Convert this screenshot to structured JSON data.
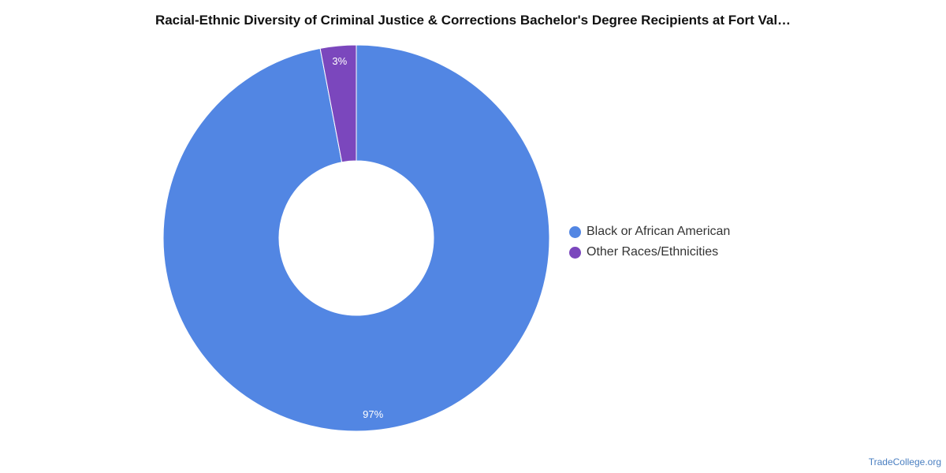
{
  "chart_data": {
    "type": "pie",
    "title": "Racial-Ethnic Diversity of Criminal Justice & Corrections Bachelor's Degree Recipients at Fort Val…",
    "donut": true,
    "categories": [
      "Black or African American",
      "Other Races/Ethnicities"
    ],
    "values": [
      97,
      3
    ],
    "value_labels": [
      "97%",
      "3%"
    ],
    "colors": [
      "#5286e3",
      "#7b47bd"
    ],
    "legend_position": "right"
  },
  "footer": {
    "source": "TradeCollege.org"
  }
}
